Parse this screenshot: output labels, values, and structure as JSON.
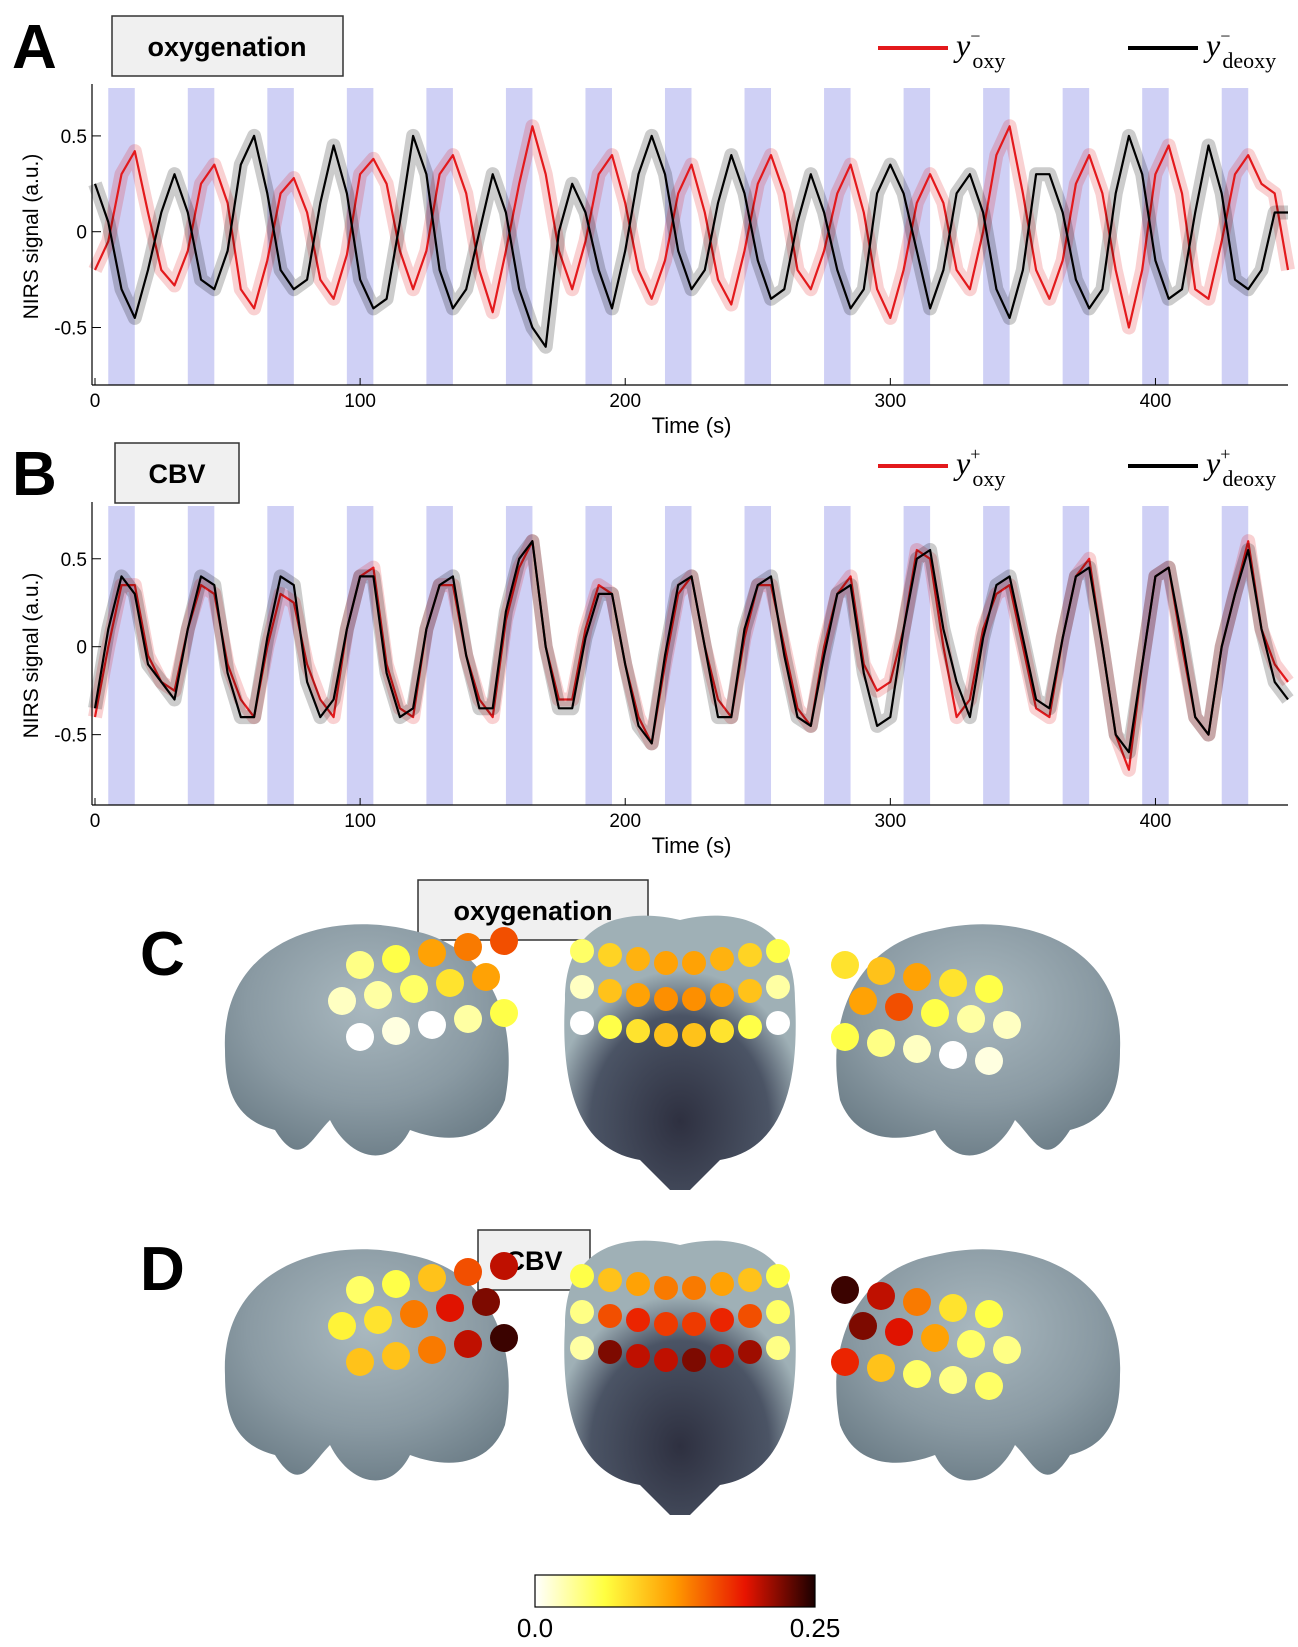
{
  "chart_data": [
    {
      "type": "line",
      "panel": "A",
      "title": "oxygenation",
      "ylabel": "NIRS signal (a.u.)",
      "xlabel": "Time (s)",
      "xlim": [
        0,
        450
      ],
      "xticks": [
        0,
        100,
        200,
        300,
        400
      ],
      "ylim": [
        -0.8,
        0.75
      ],
      "yticks": [
        -0.5,
        0,
        0.5
      ],
      "legend": "upper right",
      "shaded_intervals": [
        [
          5,
          15
        ],
        [
          35,
          45
        ],
        [
          65,
          75
        ],
        [
          95,
          105
        ],
        [
          125,
          135
        ],
        [
          155,
          165
        ],
        [
          185,
          195
        ],
        [
          215,
          225
        ],
        [
          245,
          255
        ],
        [
          275,
          285
        ],
        [
          305,
          315
        ],
        [
          335,
          345
        ],
        [
          365,
          375
        ],
        [
          395,
          405
        ],
        [
          425,
          435
        ]
      ],
      "shade_color": "#cfd0f5",
      "x": [
        0,
        5,
        10,
        15,
        20,
        25,
        30,
        35,
        40,
        45,
        50,
        55,
        60,
        65,
        70,
        75,
        80,
        85,
        90,
        95,
        100,
        105,
        110,
        115,
        120,
        125,
        130,
        135,
        140,
        145,
        150,
        155,
        160,
        165,
        170,
        175,
        180,
        185,
        190,
        195,
        200,
        205,
        210,
        215,
        220,
        225,
        230,
        235,
        240,
        245,
        250,
        255,
        260,
        265,
        270,
        275,
        280,
        285,
        290,
        295,
        300,
        305,
        310,
        315,
        320,
        325,
        330,
        335,
        340,
        345,
        350,
        355,
        360,
        365,
        370,
        375,
        380,
        385,
        390,
        395,
        400,
        405,
        410,
        415,
        420,
        425,
        430,
        435,
        440,
        445,
        450
      ],
      "series": [
        {
          "name": "y",
          "superscript": "−",
          "subscript": "oxy",
          "color": "#e3191c",
          "values": [
            -0.2,
            -0.05,
            0.3,
            0.42,
            0.1,
            -0.2,
            -0.28,
            -0.1,
            0.25,
            0.35,
            0.15,
            -0.3,
            -0.4,
            -0.15,
            0.2,
            0.28,
            0.1,
            -0.25,
            -0.35,
            -0.12,
            0.3,
            0.38,
            0.25,
            -0.1,
            -0.3,
            -0.1,
            0.3,
            0.4,
            0.2,
            -0.2,
            -0.42,
            -0.1,
            0.25,
            0.55,
            0.3,
            -0.1,
            -0.3,
            -0.05,
            0.3,
            0.4,
            0.15,
            -0.2,
            -0.35,
            -0.15,
            0.2,
            0.35,
            0.1,
            -0.25,
            -0.38,
            -0.1,
            0.25,
            0.4,
            0.2,
            -0.2,
            -0.3,
            -0.1,
            0.2,
            0.35,
            0.1,
            -0.3,
            -0.45,
            -0.2,
            0.15,
            0.3,
            0.15,
            -0.2,
            -0.3,
            0,
            0.4,
            0.55,
            0.2,
            -0.2,
            -0.35,
            -0.15,
            0.25,
            0.4,
            0.2,
            -0.2,
            -0.5,
            -0.2,
            0.3,
            0.45,
            0.2,
            -0.3,
            -0.35,
            -0.05,
            0.3,
            0.4,
            0.25,
            0.2,
            -0.2
          ]
        },
        {
          "name": "y",
          "superscript": "−",
          "subscript": "deoxy",
          "color": "#000000",
          "values": [
            0.25,
            0.05,
            -0.3,
            -0.45,
            -0.2,
            0.1,
            0.3,
            0.1,
            -0.25,
            -0.3,
            -0.1,
            0.35,
            0.5,
            0.2,
            -0.2,
            -0.3,
            -0.25,
            0.15,
            0.45,
            0.2,
            -0.25,
            -0.4,
            -0.35,
            0.05,
            0.5,
            0.3,
            -0.2,
            -0.4,
            -0.3,
            0.0,
            0.3,
            0.1,
            -0.3,
            -0.5,
            -0.6,
            0.0,
            0.25,
            0.1,
            -0.2,
            -0.4,
            -0.1,
            0.3,
            0.5,
            0.3,
            -0.1,
            -0.3,
            -0.2,
            0.15,
            0.4,
            0.2,
            -0.15,
            -0.35,
            -0.3,
            0.05,
            0.3,
            0.1,
            -0.2,
            -0.4,
            -0.3,
            0.2,
            0.35,
            0.2,
            -0.1,
            -0.4,
            -0.2,
            0.2,
            0.3,
            0.1,
            -0.3,
            -0.45,
            -0.2,
            0.3,
            0.3,
            0.1,
            -0.25,
            -0.4,
            -0.3,
            0.2,
            0.5,
            0.3,
            -0.15,
            -0.35,
            -0.3,
            0.1,
            0.45,
            0.2,
            -0.25,
            -0.3,
            -0.2,
            0.1,
            0.1
          ]
        }
      ]
    },
    {
      "type": "line",
      "panel": "B",
      "title": "CBV",
      "ylabel": "NIRS signal (a.u.)",
      "xlabel": "Time (s)",
      "xlim": [
        0,
        450
      ],
      "xticks": [
        0,
        100,
        200,
        300,
        400
      ],
      "ylim": [
        -0.9,
        0.8
      ],
      "yticks": [
        -0.5,
        0,
        0.5
      ],
      "legend": "upper right",
      "shaded_intervals": [
        [
          5,
          15
        ],
        [
          35,
          45
        ],
        [
          65,
          75
        ],
        [
          95,
          105
        ],
        [
          125,
          135
        ],
        [
          155,
          165
        ],
        [
          185,
          195
        ],
        [
          215,
          225
        ],
        [
          245,
          255
        ],
        [
          275,
          285
        ],
        [
          305,
          315
        ],
        [
          335,
          345
        ],
        [
          365,
          375
        ],
        [
          395,
          405
        ],
        [
          425,
          435
        ]
      ],
      "shade_color": "#cfd0f5",
      "x": [
        0,
        5,
        10,
        15,
        20,
        25,
        30,
        35,
        40,
        45,
        50,
        55,
        60,
        65,
        70,
        75,
        80,
        85,
        90,
        95,
        100,
        105,
        110,
        115,
        120,
        125,
        130,
        135,
        140,
        145,
        150,
        155,
        160,
        165,
        170,
        175,
        180,
        185,
        190,
        195,
        200,
        205,
        210,
        215,
        220,
        225,
        230,
        235,
        240,
        245,
        250,
        255,
        260,
        265,
        270,
        275,
        280,
        285,
        290,
        295,
        300,
        305,
        310,
        315,
        320,
        325,
        330,
        335,
        340,
        345,
        350,
        355,
        360,
        365,
        370,
        375,
        380,
        385,
        390,
        395,
        400,
        405,
        410,
        415,
        420,
        425,
        430,
        435,
        440,
        445,
        450
      ],
      "series": [
        {
          "name": "y",
          "superscript": "+",
          "subscript": "oxy",
          "color": "#e3191c",
          "values": [
            -0.4,
            0.0,
            0.35,
            0.35,
            -0.05,
            -0.2,
            -0.25,
            0.1,
            0.35,
            0.3,
            -0.1,
            -0.3,
            -0.4,
            0.0,
            0.3,
            0.25,
            -0.1,
            -0.3,
            -0.4,
            0.1,
            0.4,
            0.45,
            -0.1,
            -0.35,
            -0.4,
            0.1,
            0.35,
            0.35,
            -0.05,
            -0.3,
            -0.4,
            0.15,
            0.45,
            0.6,
            0.0,
            -0.3,
            -0.3,
            0.1,
            0.35,
            0.3,
            -0.1,
            -0.4,
            -0.55,
            -0.1,
            0.3,
            0.4,
            0.0,
            -0.3,
            -0.4,
            0.05,
            0.35,
            0.35,
            0.0,
            -0.35,
            -0.45,
            0.0,
            0.3,
            0.4,
            -0.1,
            -0.25,
            -0.2,
            0.1,
            0.55,
            0.5,
            0.0,
            -0.4,
            -0.3,
            0.1,
            0.3,
            0.35,
            0.0,
            -0.35,
            -0.4,
            0.05,
            0.4,
            0.5,
            0.0,
            -0.5,
            -0.7,
            -0.1,
            0.4,
            0.45,
            0.0,
            -0.4,
            -0.5,
            0.0,
            0.3,
            0.6,
            0.1,
            -0.1,
            -0.2
          ]
        },
        {
          "name": "y",
          "superscript": "+",
          "subscript": "deoxy",
          "color": "#000000",
          "values": [
            -0.35,
            0.1,
            0.4,
            0.3,
            -0.1,
            -0.2,
            -0.3,
            0.1,
            0.4,
            0.35,
            -0.15,
            -0.4,
            -0.4,
            0.05,
            0.4,
            0.35,
            -0.2,
            -0.4,
            -0.3,
            0.1,
            0.4,
            0.4,
            -0.15,
            -0.4,
            -0.35,
            0.1,
            0.35,
            0.4,
            -0.05,
            -0.35,
            -0.35,
            0.2,
            0.5,
            0.6,
            0.0,
            -0.35,
            -0.35,
            0.05,
            0.3,
            0.3,
            -0.1,
            -0.45,
            -0.55,
            -0.05,
            0.35,
            0.4,
            0.0,
            -0.4,
            -0.4,
            0.1,
            0.35,
            0.4,
            -0.05,
            -0.4,
            -0.45,
            -0.05,
            0.3,
            0.35,
            -0.15,
            -0.45,
            -0.4,
            0.1,
            0.5,
            0.55,
            0.1,
            -0.2,
            -0.4,
            0.05,
            0.35,
            0.4,
            0.05,
            -0.3,
            -0.35,
            0.05,
            0.4,
            0.45,
            0.0,
            -0.5,
            -0.6,
            -0.1,
            0.4,
            0.45,
            0.05,
            -0.4,
            -0.5,
            0.0,
            0.3,
            0.55,
            0.1,
            -0.2,
            -0.3
          ]
        }
      ]
    }
  ],
  "maps": [
    {
      "panel": "C",
      "title": "oxygenation",
      "views": [
        [
          0.04,
          0.06,
          0.12,
          0.14,
          0.16,
          0.02,
          0.03,
          0.05,
          0.08,
          0.12,
          0.0,
          0.01,
          0.0,
          0.03,
          0.06
        ],
        [
          0.05,
          0.09,
          0.11,
          0.12,
          0.12,
          0.11,
          0.09,
          0.06,
          0.02,
          0.1,
          0.12,
          0.13,
          0.13,
          0.12,
          0.1,
          0.03,
          0.0,
          0.06,
          0.08,
          0.1,
          0.1,
          0.08,
          0.06,
          0.0
        ],
        [
          0.08,
          0.1,
          0.12,
          0.08,
          0.06,
          0.12,
          0.16,
          0.06,
          0.03,
          0.02,
          0.06,
          0.04,
          0.02,
          0.0,
          0.01
        ]
      ]
    },
    {
      "panel": "D",
      "title": "CBV",
      "views": [
        [
          0.05,
          0.06,
          0.1,
          0.16,
          0.2,
          0.07,
          0.08,
          0.14,
          0.19,
          0.22,
          0.1,
          0.1,
          0.14,
          0.2,
          0.24
        ],
        [
          0.06,
          0.1,
          0.12,
          0.14,
          0.14,
          0.12,
          0.1,
          0.06,
          0.04,
          0.16,
          0.18,
          0.17,
          0.17,
          0.18,
          0.16,
          0.05,
          0.03,
          0.22,
          0.2,
          0.2,
          0.22,
          0.2,
          0.21,
          0.04
        ],
        [
          0.24,
          0.2,
          0.14,
          0.08,
          0.06,
          0.22,
          0.19,
          0.12,
          0.05,
          0.04,
          0.18,
          0.1,
          0.05,
          0.04,
          0.05
        ]
      ]
    }
  ],
  "colorbar": {
    "clim": [
      0,
      0.25
    ],
    "ticks": [
      {
        "value": 0,
        "label": "0.0"
      },
      0.25
    ],
    "colormap": [
      "#ffffff",
      "#ffff40",
      "#ff9a00",
      "#e81400",
      "#1a0000"
    ]
  }
}
